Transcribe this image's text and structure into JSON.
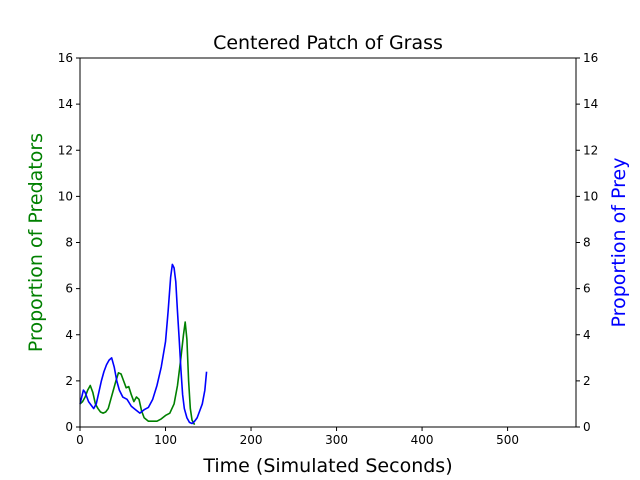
{
  "chart_data": {
    "type": "line",
    "title": "Centered Patch of Grass",
    "xlabel": "Time (Simulated Seconds)",
    "ylabel_left": "Proportion of Predators",
    "ylabel_right": "Proportion of Prey",
    "xlim": [
      0,
      580
    ],
    "ylim": [
      0,
      16
    ],
    "xticks": [
      0,
      100,
      200,
      300,
      400,
      500
    ],
    "xtick_labels": [
      "0",
      "100",
      "200",
      "300",
      "400",
      "500"
    ],
    "yticks": [
      0,
      2,
      4,
      6,
      8,
      10,
      12,
      14,
      16
    ],
    "ytick_labels": [
      "0",
      "2",
      "4",
      "6",
      "8",
      "10",
      "12",
      "14",
      "16"
    ],
    "grid": false,
    "colors": {
      "predators": "#008000",
      "prey": "#0000ff",
      "left_label": "#008000",
      "right_label": "#0000ff"
    },
    "series": [
      {
        "axis": "left",
        "color": "#008000",
        "x": [
          0,
          3,
          6,
          9,
          12,
          15,
          18,
          21,
          24,
          27,
          30,
          33,
          36,
          39,
          42,
          45,
          48,
          51,
          54,
          57,
          60,
          63,
          66,
          69,
          72,
          75,
          80,
          85,
          90,
          95,
          100,
          105,
          110,
          114,
          118,
          121,
          123,
          125,
          127,
          129,
          131,
          134
        ],
        "y": [
          1.0,
          1.1,
          1.3,
          1.6,
          1.8,
          1.5,
          1.0,
          0.8,
          0.65,
          0.6,
          0.65,
          0.8,
          1.2,
          1.6,
          2.0,
          2.35,
          2.3,
          2.0,
          1.7,
          1.75,
          1.4,
          1.1,
          1.3,
          1.2,
          0.7,
          0.4,
          0.25,
          0.25,
          0.25,
          0.35,
          0.5,
          0.6,
          1.0,
          1.8,
          3.0,
          4.0,
          4.55,
          3.8,
          2.0,
          0.8,
          0.3,
          0.1
        ]
      },
      {
        "axis": "right",
        "color": "#0000ff",
        "x": [
          0,
          2,
          4,
          6,
          8,
          10,
          13,
          16,
          19,
          22,
          25,
          28,
          31,
          34,
          37,
          40,
          43,
          46,
          50,
          55,
          60,
          65,
          70,
          75,
          80,
          85,
          90,
          95,
          100,
          103,
          106,
          108,
          110,
          112,
          114,
          116,
          118,
          120,
          122,
          125,
          128,
          131,
          134,
          137,
          140,
          143,
          146,
          148
        ],
        "y": [
          1.0,
          1.3,
          1.6,
          1.5,
          1.3,
          1.1,
          0.95,
          0.8,
          1.0,
          1.5,
          2.0,
          2.4,
          2.7,
          2.9,
          3.0,
          2.6,
          2.0,
          1.6,
          1.3,
          1.2,
          0.9,
          0.75,
          0.6,
          0.75,
          0.85,
          1.2,
          1.8,
          2.6,
          3.7,
          5.0,
          6.5,
          7.05,
          6.9,
          6.3,
          5.0,
          3.8,
          2.5,
          1.4,
          0.8,
          0.4,
          0.2,
          0.15,
          0.25,
          0.4,
          0.7,
          1.0,
          1.6,
          2.4
        ]
      }
    ]
  }
}
